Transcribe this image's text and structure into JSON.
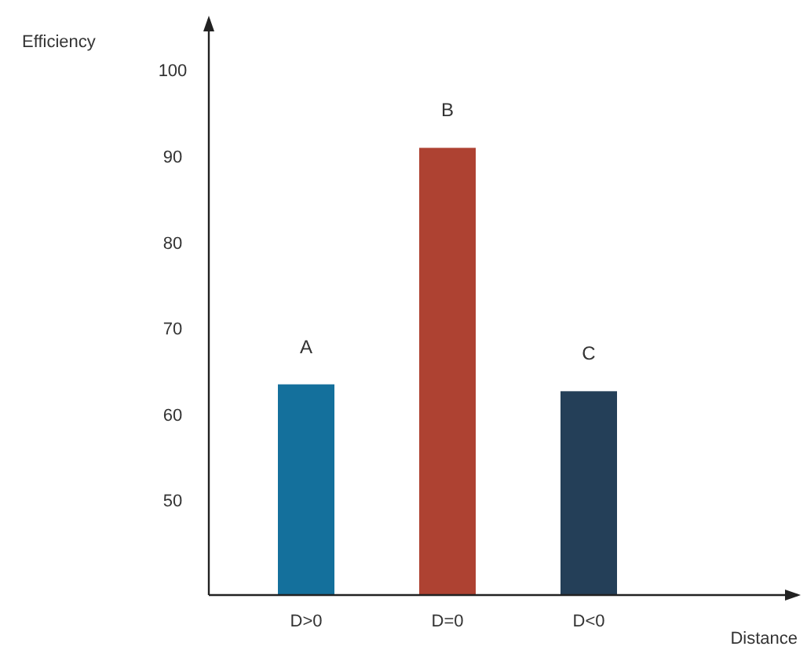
{
  "chart_data": {
    "type": "bar",
    "xlabel": "Distance",
    "ylabel": "Efficiency",
    "categories": [
      "D>0",
      "D=0",
      "D<0"
    ],
    "values": [
      63.5,
      91,
      62.7
    ],
    "colors": [
      "#14709c",
      "#ae4232",
      "#243f58"
    ],
    "ylim": [
      39,
      106
    ],
    "yticks": [
      50,
      60,
      70,
      80,
      90,
      100
    ],
    "grid": false,
    "annotations": [
      {
        "text": "A",
        "x": "D>0",
        "y": 63.5
      },
      {
        "text": "B",
        "x": "D=0",
        "y": 91
      },
      {
        "text": "C",
        "x": "D<0",
        "y": 62.7
      }
    ]
  }
}
